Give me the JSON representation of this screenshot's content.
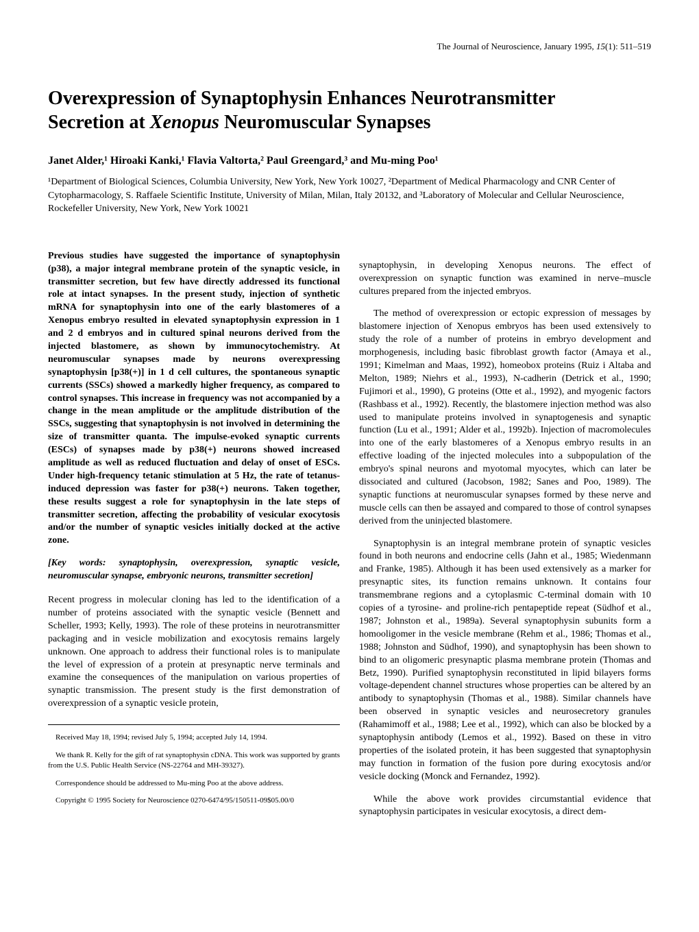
{
  "header": {
    "journal": "The Journal of Neuroscience, January 1995, ",
    "issue": "15",
    "issue_detail": "(1): 511–519"
  },
  "title": {
    "line1": "Overexpression of Synaptophysin Enhances Neurotransmitter",
    "line2_pre": "Secretion at ",
    "line2_ital": "Xenopus",
    "line2_post": " Neuromuscular Synapses"
  },
  "authors": "Janet Alder,¹ Hiroaki Kanki,¹ Flavia Valtorta,² Paul Greengard,³ and Mu-ming Poo¹",
  "affiliations": "¹Department of Biological Sciences, Columbia University, New York, New York 10027, ²Department of Medical Pharmacology and CNR Center of Cytopharmacology, S. Raffaele Scientific Institute, University of Milan, Milan, Italy 20132, and ³Laboratory of Molecular and Cellular Neuroscience, Rockefeller University, New York, New York 10021",
  "left_column": {
    "abstract": "Previous studies have suggested the importance of synaptophysin (p38), a major integral membrane protein of the synaptic vesicle, in transmitter secretion, but few have directly addressed its functional role at intact synapses. In the present study, injection of synthetic mRNA for synaptophysin into one of the early blastomeres of a Xenopus embryo resulted in elevated synaptophysin expression in 1 and 2 d embryos and in cultured spinal neurons derived from the injected blastomere, as shown by immunocytochemistry. At neuromuscular synapses made by neurons overexpressing synaptophysin [p38(+)] in 1 d cell cultures, the spontaneous synaptic currents (SSCs) showed a markedly higher frequency, as compared to control synapses. This increase in frequency was not accompanied by a change in the mean amplitude or the amplitude distribution of the SSCs, suggesting that synaptophysin is not involved in determining the size of transmitter quanta. The impulse-evoked synaptic currents (ESCs) of synapses made by p38(+) neurons showed increased amplitude as well as reduced fluctuation and delay of onset of ESCs. Under high-frequency tetanic stimulation at 5 Hz, the rate of tetanus-induced depression was faster for p38(+) neurons. Taken together, these results suggest a role for synaptophysin in the late steps of transmitter secretion, affecting the probability of vesicular exocytosis and/or the number of synaptic vesicles initially docked at the active zone.",
    "keywords": "[Key words: synaptophysin, overexpression, synaptic vesicle, neuromuscular synapse, embryonic neurons, transmitter secretion]",
    "intro": "Recent progress in molecular cloning has led to the identification of a number of proteins associated with the synaptic vesicle (Bennett and Scheller, 1993; Kelly, 1993). The role of these proteins in neurotransmitter packaging and in vesicle mobilization and exocytosis remains largely unknown. One approach to address their functional roles is to manipulate the level of expression of a protein at presynaptic nerve terminals and examine the consequences of the manipulation on various properties of synaptic transmission. The present study is the first demonstration of overexpression of a synaptic vesicle protein,",
    "footnotes": {
      "received": "Received May 18, 1994; revised July 5, 1994; accepted July 14, 1994.",
      "thanks": "We thank R. Kelly for the gift of rat synaptophysin cDNA. This work was supported by grants from the U.S. Public Health Service (NS-22764 and MH-39327).",
      "correspondence": "Correspondence should be addressed to Mu-ming Poo at the above address.",
      "copyright": "Copyright © 1995 Society for Neuroscience 0270-6474/95/150511-09$05.00/0"
    }
  },
  "right_column": {
    "para1": "synaptophysin, in developing Xenopus neurons. The effect of overexpression on synaptic function was examined in nerve–muscle cultures prepared from the injected embryos.",
    "para2": "The method of overexpression or ectopic expression of messages by blastomere injection of Xenopus embryos has been used extensively to study the role of a number of proteins in embryo development and morphogenesis, including basic fibroblast growth factor (Amaya et al., 1991; Kimelman and Maas, 1992), homeobox proteins (Ruiz i Altaba and Melton, 1989; Niehrs et al., 1993), N-cadherin (Detrick et al., 1990; Fujimori et al., 1990), G proteins (Otte et al., 1992), and myogenic factors (Rashbass et al., 1992). Recently, the blastomere injection method was also used to manipulate proteins involved in synaptogenesis and synaptic function (Lu et al., 1991; Alder et al., 1992b). Injection of macromolecules into one of the early blastomeres of a Xenopus embryo results in an effective loading of the injected molecules into a subpopulation of the embryo's spinal neurons and myotomal myocytes, which can later be dissociated and cultured (Jacobson, 1982; Sanes and Poo, 1989). The synaptic functions at neuromuscular synapses formed by these nerve and muscle cells can then be assayed and compared to those of control synapses derived from the uninjected blastomere.",
    "para3": "Synaptophysin is an integral membrane protein of synaptic vesicles found in both neurons and endocrine cells (Jahn et al., 1985; Wiedenmann and Franke, 1985). Although it has been used extensively as a marker for presynaptic sites, its function remains unknown. It contains four transmembrane regions and a cytoplasmic C-terminal domain with 10 copies of a tyrosine- and proline-rich pentapeptide repeat (Südhof et al., 1987; Johnston et al., 1989a). Several synaptophysin subunits form a homooligomer in the vesicle membrane (Rehm et al., 1986; Thomas et al., 1988; Johnston and Südhof, 1990), and synaptophysin has been shown to bind to an oligomeric presynaptic plasma membrane protein (Thomas and Betz, 1990). Purified synaptophysin reconstituted in lipid bilayers forms voltage-dependent channel structures whose properties can be altered by an antibody to synaptophysin (Thomas et al., 1988). Similar channels have been observed in synaptic vesicles and neurosecretory granules (Rahamimoff et al., 1988; Lee et al., 1992), which can also be blocked by a synaptophysin antibody (Lemos et al., 1992). Based on these in vitro properties of the isolated protein, it has been suggested that synaptophysin may function in formation of the fusion pore during exocytosis and/or vesicle docking (Monck and Fernandez, 1992).",
    "para4": "While the above work provides circumstantial evidence that synaptophysin participates in vesicular exocytosis, a direct dem-"
  }
}
